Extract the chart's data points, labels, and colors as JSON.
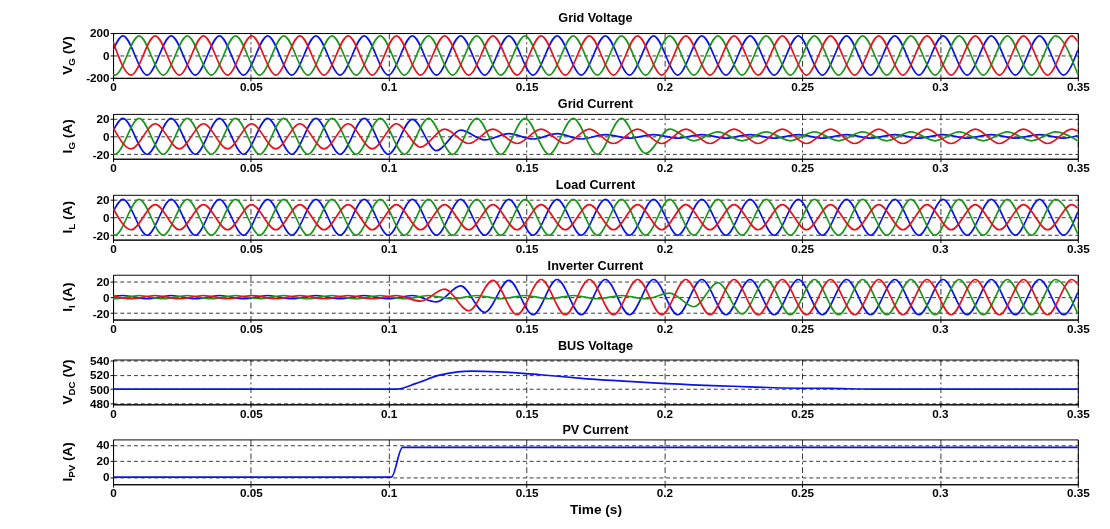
{
  "chart_data": [
    {
      "type": "line",
      "title": "Grid Voltage",
      "ylabel": "V$_{G}$ (V)",
      "xlim": [
        0,
        0.35
      ],
      "xticks": [
        0,
        0.05,
        0.1,
        0.15,
        0.2,
        0.25,
        0.3,
        0.35
      ],
      "ylim": [
        -200,
        200
      ],
      "yticks": [
        -200,
        0,
        200
      ],
      "grid": true,
      "series": [
        {
          "color": "#0a14e6",
          "x": [
            0,
            0.0036,
            0.01235,
            0.0211,
            0.02985,
            0.0386,
            0.04735,
            0.0561,
            0.06485,
            0.0736,
            0.08235,
            0.0911,
            0.09985,
            0.1086,
            0.11735,
            0.1261,
            0.13485,
            0.1436,
            0.15235,
            0.1611,
            0.16985,
            0.1786,
            0.18735,
            0.1961,
            0.20485,
            0.2136,
            0.22235,
            0.2311,
            0.23985,
            0.2486,
            0.25735,
            0.2661,
            0.27485,
            0.2836,
            0.29235,
            0.3011,
            0.30985,
            0.3186,
            0.32735,
            0.3361,
            0.34485,
            0.35
          ],
          "values": [
            49,
            175,
            -175,
            175,
            -175,
            175,
            -175,
            175,
            -175,
            175,
            -175,
            175,
            -175,
            175,
            -175,
            175,
            -175,
            175,
            -175,
            175,
            -175,
            175,
            -175,
            175,
            -175,
            175,
            -175,
            175,
            -175,
            175,
            -175,
            175,
            -175,
            175,
            -175,
            175,
            -175,
            175,
            -175,
            175,
            -175,
            49
          ]
        },
        {
          "color": "#1e961e",
          "x": [
            0,
            0.0007,
            0.00945,
            0.0182,
            0.02695,
            0.0357,
            0.04445,
            0.0532,
            0.06195,
            0.0707,
            0.07945,
            0.0882,
            0.09695,
            0.1057,
            0.11445,
            0.1232,
            0.13195,
            0.1407,
            0.14945,
            0.1582,
            0.16695,
            0.1757,
            0.18445,
            0.1932,
            0.20195,
            0.2107,
            0.21945,
            0.2282,
            0.23695,
            0.2457,
            0.25445,
            0.2632,
            0.27195,
            0.2807,
            0.28945,
            0.2982,
            0.30695,
            0.3157,
            0.32445,
            0.3332,
            0.34195,
            0.35
          ],
          "values": [
            -170,
            -175,
            175,
            -175,
            175,
            -175,
            175,
            -175,
            175,
            -175,
            175,
            -175,
            175,
            -175,
            175,
            -175,
            175,
            -175,
            175,
            -175,
            175,
            -175,
            175,
            -175,
            175,
            -175,
            175,
            -175,
            175,
            -175,
            175,
            -175,
            175,
            -175,
            175,
            -175,
            175,
            -175,
            175,
            -175,
            175,
            -170
          ]
        },
        {
          "color": "#e6141e",
          "x": [
            0,
            0.00655,
            0.0153,
            0.02405,
            0.0328,
            0.04155,
            0.0503,
            0.05905,
            0.0678,
            0.07655,
            0.0853,
            0.09405,
            0.1028,
            0.11155,
            0.1203,
            0.12905,
            0.1378,
            0.14655,
            0.1553,
            0.16405,
            0.1728,
            0.18155,
            0.1903,
            0.19905,
            0.2078,
            0.21655,
            0.2253,
            0.23405,
            0.2428,
            0.25155,
            0.2603,
            0.26905,
            0.2778,
            0.28655,
            0.2953,
            0.30405,
            0.3128,
            0.32155,
            0.3303,
            0.33905,
            0.3478,
            0.35
          ],
          "values": [
            124,
            -175,
            175,
            -175,
            175,
            -175,
            175,
            -175,
            175,
            -175,
            175,
            -175,
            175,
            -175,
            175,
            -175,
            175,
            -175,
            175,
            -175,
            175,
            -175,
            175,
            -175,
            175,
            -175,
            175,
            -175,
            175,
            -175,
            175,
            -175,
            175,
            -175,
            175,
            -175,
            175,
            -175,
            175,
            -175,
            175,
            124
          ]
        }
      ]
    },
    {
      "type": "line",
      "title": "Grid Current",
      "ylabel": "I$_{G}$ (A)",
      "xlim": [
        0,
        0.35
      ],
      "xticks": [
        0,
        0.05,
        0.1,
        0.15,
        0.2,
        0.25,
        0.3,
        0.35
      ],
      "ylim": [
        -25,
        25
      ],
      "yticks": [
        -20,
        0,
        20
      ],
      "grid": true,
      "series": [
        {
          "color": "#0a14e6",
          "x": [
            0,
            0.0036,
            0.01235,
            0.0211,
            0.02985,
            0.0386,
            0.04735,
            0.0561,
            0.06485,
            0.0736,
            0.08235,
            0.0911,
            0.09985,
            0.1086,
            0.11735,
            0.1261,
            0.13485,
            0.1436,
            0.15235,
            0.1611,
            0.16985,
            0.1786,
            0.18735,
            0.1961,
            0.20485,
            0.2136,
            0.22235,
            0.2311,
            0.23985,
            0.2486,
            0.25735,
            0.2661,
            0.27485,
            0.2836,
            0.29235,
            0.3011,
            0.30985,
            0.3186,
            0.32735,
            0.3361,
            0.34485,
            0.35
          ],
          "values": [
            6,
            20,
            -20,
            20,
            -20,
            20,
            -20,
            20,
            -20,
            20,
            -20,
            20,
            -20,
            19,
            -16,
            7,
            -4,
            3,
            -3,
            3,
            -3,
            2,
            -2,
            2,
            -2,
            2,
            -2,
            2,
            -2,
            2,
            -2,
            2,
            -2,
            2,
            -2,
            2,
            -2,
            2,
            -2,
            2,
            -2,
            1
          ]
        },
        {
          "color": "#1e961e",
          "x": [
            0,
            0.0007,
            0.00945,
            0.0182,
            0.02695,
            0.0357,
            0.04445,
            0.0532,
            0.06195,
            0.0707,
            0.07945,
            0.0882,
            0.09695,
            0.1057,
            0.11445,
            0.1232,
            0.13195,
            0.1407,
            0.14945,
            0.1582,
            0.16695,
            0.1757,
            0.18445,
            0.1932,
            0.20195,
            0.2107,
            0.21945,
            0.2282,
            0.23695,
            0.2457,
            0.25445,
            0.2632,
            0.27195,
            0.2807,
            0.28945,
            0.2982,
            0.30695,
            0.3157,
            0.32445,
            0.3332,
            0.34195,
            0.35
          ],
          "values": [
            -19,
            -20,
            20,
            -20,
            20,
            -20,
            20,
            -20,
            20,
            -20,
            20,
            -20,
            20,
            -20,
            20,
            -20,
            20,
            -20,
            20,
            -20,
            20,
            -20,
            20,
            -19,
            8,
            -5,
            5,
            -5,
            5,
            -5,
            5,
            -5,
            5,
            -5,
            5,
            -5,
            5,
            -5,
            5,
            -5,
            5,
            -5
          ]
        },
        {
          "color": "#e6141e",
          "x": [
            0,
            0.00655,
            0.0153,
            0.02405,
            0.0328,
            0.04155,
            0.0503,
            0.05905,
            0.0678,
            0.07655,
            0.0853,
            0.09405,
            0.1028,
            0.11155,
            0.1203,
            0.12905,
            0.1378,
            0.14655,
            0.1553,
            0.16405,
            0.1728,
            0.18155,
            0.1903,
            0.19905,
            0.2078,
            0.21655,
            0.2253,
            0.23405,
            0.2428,
            0.25155,
            0.2603,
            0.26905,
            0.2778,
            0.28655,
            0.2953,
            0.30405,
            0.3128,
            0.32155,
            0.3303,
            0.33905,
            0.3478,
            0.35
          ],
          "values": [
            10,
            -14,
            14,
            -14,
            14,
            -14,
            14,
            -14,
            14,
            -14,
            14,
            -14,
            14,
            -12,
            8,
            -8,
            8,
            -8,
            8,
            -8,
            8,
            -8,
            8,
            -8,
            8,
            -8,
            8,
            -8,
            8,
            -8,
            8,
            -8,
            8,
            -8,
            8,
            -8,
            8,
            -8,
            8,
            -8,
            8,
            6
          ]
        }
      ]
    },
    {
      "type": "line",
      "title": "Load Current",
      "ylabel": "I$_{L}$ (A)",
      "xlim": [
        0,
        0.35
      ],
      "xticks": [
        0,
        0.05,
        0.1,
        0.15,
        0.2,
        0.25,
        0.3,
        0.35
      ],
      "ylim": [
        -25,
        25
      ],
      "yticks": [
        -20,
        0,
        20
      ],
      "grid": true,
      "series": [
        {
          "color": "#0a14e6",
          "x": [
            0,
            0.0036,
            0.01235,
            0.0211,
            0.02985,
            0.0386,
            0.04735,
            0.0561,
            0.06485,
            0.0736,
            0.08235,
            0.0911,
            0.09985,
            0.1086,
            0.11735,
            0.1261,
            0.13485,
            0.1436,
            0.15235,
            0.1611,
            0.16985,
            0.1786,
            0.18735,
            0.1961,
            0.20485,
            0.2136,
            0.22235,
            0.2311,
            0.23985,
            0.2486,
            0.25735,
            0.2661,
            0.27485,
            0.2836,
            0.29235,
            0.3011,
            0.30985,
            0.3186,
            0.32735,
            0.3361,
            0.34485,
            0.35
          ],
          "values": [
            6,
            20,
            -20,
            20,
            -20,
            20,
            -20,
            20,
            -20,
            20,
            -20,
            20,
            -20,
            20,
            -20,
            20,
            -20,
            20,
            -20,
            20,
            -20,
            20,
            -20,
            20,
            -20,
            20,
            -20,
            20,
            -20,
            20,
            -20,
            20,
            -20,
            20,
            -20,
            20,
            -20,
            20,
            -20,
            20,
            -20,
            6
          ]
        },
        {
          "color": "#1e961e",
          "x": [
            0,
            0.0007,
            0.00945,
            0.0182,
            0.02695,
            0.0357,
            0.04445,
            0.0532,
            0.06195,
            0.0707,
            0.07945,
            0.0882,
            0.09695,
            0.1057,
            0.11445,
            0.1232,
            0.13195,
            0.1407,
            0.14945,
            0.1582,
            0.16695,
            0.1757,
            0.18445,
            0.1932,
            0.20195,
            0.2107,
            0.21945,
            0.2282,
            0.23695,
            0.2457,
            0.25445,
            0.2632,
            0.27195,
            0.2807,
            0.28945,
            0.2982,
            0.30695,
            0.3157,
            0.32445,
            0.3332,
            0.34195,
            0.35
          ],
          "values": [
            -19,
            -20,
            20,
            -20,
            20,
            -20,
            20,
            -20,
            20,
            -20,
            20,
            -20,
            20,
            -20,
            20,
            -20,
            20,
            -20,
            20,
            -20,
            20,
            -20,
            20,
            -20,
            20,
            -20,
            20,
            -20,
            20,
            -20,
            20,
            -20,
            20,
            -20,
            20,
            -20,
            20,
            -20,
            20,
            -20,
            20,
            -19
          ]
        },
        {
          "color": "#e6141e",
          "x": [
            0,
            0.00655,
            0.0153,
            0.02405,
            0.0328,
            0.04155,
            0.0503,
            0.05905,
            0.0678,
            0.07655,
            0.0853,
            0.09405,
            0.1028,
            0.11155,
            0.1203,
            0.12905,
            0.1378,
            0.14655,
            0.1553,
            0.16405,
            0.1728,
            0.18155,
            0.1903,
            0.19905,
            0.2078,
            0.21655,
            0.2253,
            0.23405,
            0.2428,
            0.25155,
            0.2603,
            0.26905,
            0.2778,
            0.28655,
            0.2953,
            0.30405,
            0.3128,
            0.32155,
            0.3303,
            0.33905,
            0.3478,
            0.35
          ],
          "values": [
            10,
            -14,
            14,
            -14,
            14,
            -14,
            14,
            -14,
            14,
            -14,
            14,
            -14,
            14,
            -14,
            14,
            -14,
            14,
            -14,
            14,
            -14,
            14,
            -14,
            14,
            -14,
            14,
            -14,
            14,
            -14,
            14,
            -14,
            14,
            -14,
            14,
            -14,
            14,
            -14,
            14,
            -14,
            14,
            -14,
            14,
            10
          ]
        }
      ]
    },
    {
      "type": "line",
      "title": "Inverter Current",
      "ylabel": "I$_{I}$ (A)",
      "xlim": [
        0,
        0.35
      ],
      "xticks": [
        0,
        0.05,
        0.1,
        0.15,
        0.2,
        0.25,
        0.3,
        0.35
      ],
      "ylim": [
        -28,
        28
      ],
      "yticks": [
        -20,
        0,
        20
      ],
      "grid": true,
      "series": [
        {
          "color": "#0a14e6",
          "x": [
            0,
            0.0036,
            0.01235,
            0.0211,
            0.02985,
            0.0386,
            0.04735,
            0.0561,
            0.06485,
            0.0736,
            0.08235,
            0.0911,
            0.09985,
            0.1086,
            0.11735,
            0.1261,
            0.13485,
            0.1436,
            0.15235,
            0.1611,
            0.16985,
            0.1786,
            0.18735,
            0.1961,
            0.20485,
            0.2136,
            0.22235,
            0.2311,
            0.23985,
            0.2486,
            0.25735,
            0.2661,
            0.27485,
            0.2836,
            0.29235,
            0.3011,
            0.30985,
            0.3186,
            0.32735,
            0.3361,
            0.34485,
            0.35
          ],
          "values": [
            1,
            2,
            -2,
            2,
            -2,
            2,
            -2,
            2,
            -2,
            2,
            -2,
            2,
            -2,
            2,
            -6,
            14,
            -19,
            21,
            -22,
            22,
            -22,
            22,
            -22,
            22,
            -22,
            22,
            -22,
            22,
            -22,
            22,
            -22,
            22,
            -22,
            22,
            -22,
            22,
            -22,
            22,
            -22,
            22,
            -22,
            6
          ]
        },
        {
          "color": "#1e961e",
          "x": [
            0,
            0.0007,
            0.00945,
            0.0182,
            0.02695,
            0.0357,
            0.04445,
            0.0532,
            0.06195,
            0.0707,
            0.07945,
            0.0882,
            0.09695,
            0.1057,
            0.11445,
            0.1232,
            0.13195,
            0.1407,
            0.14945,
            0.1582,
            0.16695,
            0.1757,
            0.18445,
            0.1932,
            0.20195,
            0.2107,
            0.21945,
            0.2282,
            0.23695,
            0.2457,
            0.25445,
            0.2632,
            0.27195,
            0.2807,
            0.28945,
            0.2982,
            0.30695,
            0.3157,
            0.32445,
            0.3332,
            0.34195,
            0.35
          ],
          "values": [
            -2,
            -2,
            2,
            -2,
            2,
            -2,
            2,
            -2,
            2,
            -2,
            2,
            -2,
            2,
            -2,
            2,
            -2,
            2,
            -2,
            2,
            -2,
            2,
            -2,
            2,
            -2,
            5,
            -12,
            18,
            -21,
            22,
            -22,
            22,
            -22,
            22,
            -22,
            22,
            -22,
            22,
            -22,
            22,
            -22,
            22,
            -21
          ]
        },
        {
          "color": "#e6141e",
          "x": [
            0,
            0.00655,
            0.0153,
            0.02405,
            0.0328,
            0.04155,
            0.0503,
            0.05905,
            0.0678,
            0.07655,
            0.0853,
            0.09405,
            0.1028,
            0.11155,
            0.1203,
            0.12905,
            0.1378,
            0.14655,
            0.1553,
            0.16405,
            0.1728,
            0.18155,
            0.1903,
            0.19905,
            0.2078,
            0.21655,
            0.2253,
            0.23405,
            0.2428,
            0.25155,
            0.2603,
            0.26905,
            0.2778,
            0.28655,
            0.2953,
            0.30405,
            0.3128,
            0.32155,
            0.3303,
            0.33905,
            0.3478,
            0.35
          ],
          "values": [
            1,
            -2,
            2,
            -2,
            2,
            -2,
            2,
            -2,
            2,
            -2,
            2,
            -2,
            2,
            -5,
            10,
            -17,
            21,
            -22,
            22,
            -22,
            22,
            -22,
            22,
            -22,
            22,
            -22,
            22,
            -22,
            22,
            -22,
            22,
            -22,
            22,
            -22,
            22,
            -22,
            22,
            -22,
            22,
            -22,
            22,
            16
          ]
        }
      ]
    },
    {
      "type": "line",
      "title": "BUS Voltage",
      "ylabel": "V$_{DC}$ (V)",
      "xlim": [
        0,
        0.35
      ],
      "xticks": [
        0,
        0.05,
        0.1,
        0.15,
        0.2,
        0.25,
        0.3,
        0.35
      ],
      "ylim": [
        479,
        541
      ],
      "yticks": [
        480,
        500,
        520,
        540
      ],
      "grid": true,
      "series": [
        {
          "color": "#0a14e6",
          "x": [
            0,
            0.103,
            0.11,
            0.118,
            0.125,
            0.13,
            0.14,
            0.155,
            0.17,
            0.19,
            0.21,
            0.225,
            0.24,
            0.26,
            0.28,
            0.35
          ],
          "values": [
            500,
            500,
            508,
            519,
            524,
            525,
            524,
            520,
            515,
            510,
            506,
            504,
            502,
            501,
            500,
            500
          ]
        }
      ]
    },
    {
      "type": "line",
      "title": "PV Current",
      "ylabel": "I$_{PV}$ (A)",
      "xlabel": "Time (s)",
      "xlim": [
        0,
        0.35
      ],
      "xticks": [
        0,
        0.05,
        0.1,
        0.15,
        0.2,
        0.25,
        0.3,
        0.35
      ],
      "ylim": [
        -9,
        47
      ],
      "yticks": [
        0,
        20,
        40
      ],
      "grid": true,
      "series": [
        {
          "color": "#0a14e6",
          "x": [
            0,
            0.101,
            0.105,
            0.35
          ],
          "values": [
            0,
            0,
            37,
            37
          ]
        }
      ]
    }
  ]
}
